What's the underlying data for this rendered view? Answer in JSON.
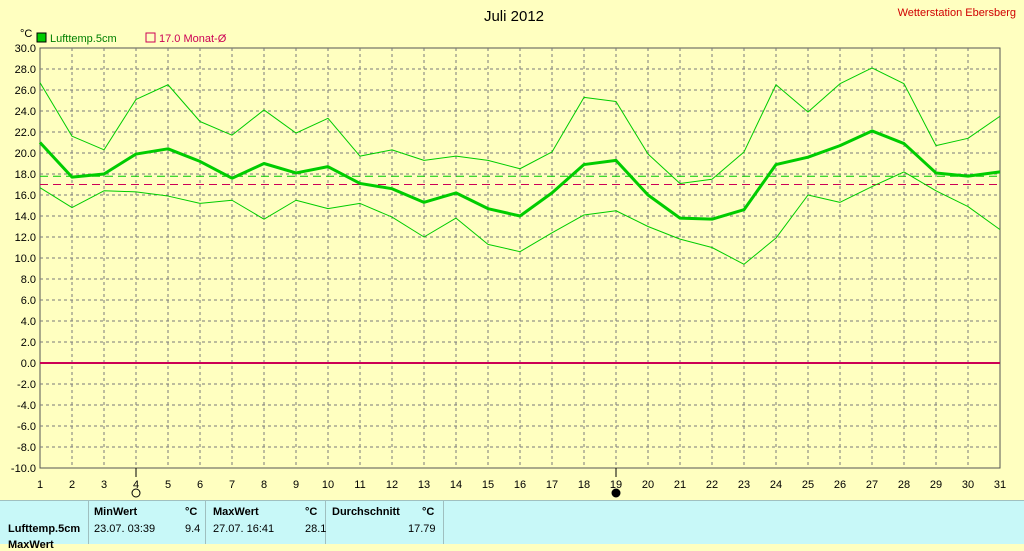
{
  "station": "Wetterstation Ebersberg",
  "chart_data": {
    "type": "line",
    "title": "Juli 2012",
    "ylabel": "°C",
    "ylim": [
      -10,
      30
    ],
    "ytick_step": 2,
    "grid": true,
    "legend_placement": "top-left",
    "x": [
      1,
      2,
      3,
      4,
      5,
      6,
      7,
      8,
      9,
      10,
      11,
      12,
      13,
      14,
      15,
      16,
      17,
      18,
      19,
      20,
      21,
      22,
      23,
      24,
      25,
      26,
      27,
      28,
      29,
      30,
      31
    ],
    "y_tick_labels": [
      "30.0",
      "28.0",
      "26.0",
      "24.0",
      "22.0",
      "20.0",
      "18.0",
      "16.0",
      "14.0",
      "12.0",
      "10.0",
      "8.0",
      "6.0",
      "4.0",
      "2.0",
      "0.0",
      "-2.0",
      "-4.0",
      "-6.0",
      "-8.0",
      "-10.0"
    ],
    "series": [
      {
        "name": "Lufttemp.5cm",
        "role": "mean",
        "color": "#00cc00",
        "values": [
          21.0,
          17.7,
          18.0,
          19.9,
          20.4,
          19.2,
          17.6,
          19.0,
          18.1,
          18.7,
          17.1,
          16.6,
          15.3,
          16.2,
          14.7,
          14.0,
          16.2,
          18.9,
          19.3,
          16.0,
          13.8,
          13.7,
          14.6,
          18.9,
          19.6,
          20.7,
          22.1,
          20.9,
          18.1,
          17.8,
          18.2
        ]
      },
      {
        "role": "max",
        "color": "#00cc00",
        "values": [
          26.7,
          21.6,
          20.3,
          25.1,
          26.5,
          23.0,
          21.7,
          24.1,
          21.9,
          23.3,
          19.7,
          20.3,
          19.3,
          19.7,
          19.3,
          18.5,
          20.1,
          25.3,
          24.9,
          19.9,
          17.1,
          17.5,
          20.1,
          26.5,
          23.9,
          26.6,
          28.1,
          26.6,
          20.7,
          21.4,
          23.5
        ]
      },
      {
        "role": "min",
        "color": "#00cc00",
        "values": [
          16.7,
          14.8,
          16.4,
          16.3,
          15.9,
          15.2,
          15.5,
          13.7,
          15.5,
          14.7,
          15.2,
          13.9,
          12.0,
          13.8,
          11.3,
          10.6,
          12.4,
          14.1,
          14.5,
          13.0,
          11.8,
          11.0,
          9.4,
          11.9,
          16.0,
          15.3,
          16.8,
          18.2,
          16.4,
          14.9,
          12.7
        ]
      }
    ],
    "reference_lines": [
      {
        "name": "17.0 Monat-Ø",
        "value": 17.0,
        "color": "#cc0055",
        "style": "dashed"
      },
      {
        "value": 17.79,
        "color": "#00cc00",
        "style": "dashed"
      },
      {
        "value": 0.0,
        "color": "#cc0055",
        "style": "solid"
      }
    ],
    "legend": [
      {
        "label": "Lufttemp.5cm",
        "color": "#00cc00",
        "filled": true
      },
      {
        "label": "17.0 Monat-Ø",
        "color": "#cc0055",
        "filled": false
      }
    ],
    "moon_markers": [
      {
        "day": 4,
        "phase": "full"
      },
      {
        "day": 19,
        "phase": "new"
      }
    ]
  },
  "stats": {
    "sensor": "Lufttemp.5cm",
    "sensor_next": "MaxWert",
    "min_header": "MinWert",
    "min_unit": "°C",
    "min_date": "23.07.  03:39",
    "min_value": "9.4",
    "max_header": "MaxWert",
    "max_unit": "°C",
    "max_date": "27.07.  16:41",
    "max_value": "28.1",
    "avg_header": "Durchschnitt",
    "avg_unit": "°C",
    "avg_value": "17.79"
  }
}
